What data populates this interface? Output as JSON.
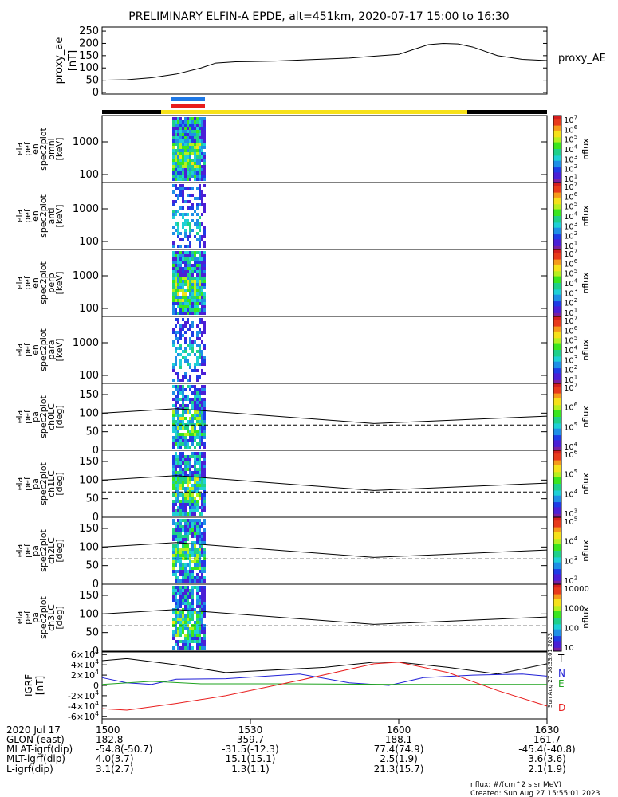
{
  "title": "PRELIMINARY ELFIN-A EPDE, alt=451km, 2020-07-17 15:00 to 16:30",
  "colors": {
    "black": "#000000",
    "yellow": "#f7e11a",
    "blue": "#1e78e6",
    "red": "#e81c1c",
    "green": "#1fa31f",
    "navyblue": "#1f1fd6"
  },
  "chart_data": [
    {
      "type": "line",
      "id": "proxy_ae",
      "ylabel": [
        "proxy_ae",
        "[nT]"
      ],
      "legend": "proxy_AE",
      "yticks": [
        "250",
        "200",
        "150",
        "100",
        "50",
        "0"
      ],
      "ylim": [
        0,
        260
      ],
      "x_minutes": [
        0,
        5,
        10,
        15,
        20,
        23,
        27,
        30,
        35,
        40,
        45,
        50,
        55,
        60,
        63,
        66,
        69,
        72,
        75,
        80,
        85,
        90
      ],
      "y": [
        50,
        52,
        60,
        75,
        100,
        120,
        125,
        126,
        128,
        132,
        136,
        140,
        148,
        155,
        175,
        195,
        200,
        198,
        185,
        150,
        135,
        130
      ]
    },
    {
      "type": "heatmap",
      "id": "pef_en_spec2plot_omni",
      "ylabel": [
        "ela",
        "pef",
        "en",
        "spec2plot",
        "omni",
        "[keV]"
      ],
      "yticks": [
        "1000",
        "100"
      ],
      "yscale": "log",
      "zlabel": "nflux",
      "zticks": [
        "10^7",
        "10^6",
        "10^5",
        "10^4",
        "10^3",
        "10^2",
        "10^1"
      ],
      "x_range_minutes": [
        13.5,
        19.5
      ]
    },
    {
      "type": "heatmap",
      "id": "pef_en_spec2plot_anti",
      "ylabel": [
        "ela",
        "pef",
        "en",
        "spec2plot",
        "anti",
        "[keV]"
      ],
      "yticks": [
        "1000",
        "100"
      ],
      "yscale": "log",
      "zlabel": "nflux",
      "zticks": [
        "10^7",
        "10^6",
        "10^5",
        "10^4",
        "10^3",
        "10^2",
        "10^1"
      ],
      "x_range_minutes": [
        13.5,
        19.5
      ]
    },
    {
      "type": "heatmap",
      "id": "pef_en_spec2plot_perp",
      "ylabel": [
        "ela",
        "pef",
        "en",
        "spec2plot",
        "perp",
        "[keV]"
      ],
      "yticks": [
        "1000",
        "100"
      ],
      "yscale": "log",
      "zlabel": "nflux",
      "zticks": [
        "10^7",
        "10^6",
        "10^5",
        "10^4",
        "10^3",
        "10^2",
        "10^1"
      ],
      "x_range_minutes": [
        13.5,
        19.5
      ]
    },
    {
      "type": "heatmap",
      "id": "pef_en_spec2plot_para",
      "ylabel": [
        "ela",
        "pef",
        "en",
        "spec2plot",
        "para",
        "[keV]"
      ],
      "yticks": [
        "1000",
        "100"
      ],
      "yscale": "log",
      "zlabel": "nflux",
      "zticks": [
        "10^7",
        "10^6",
        "10^5",
        "10^4",
        "10^3",
        "10^2",
        "10^1"
      ],
      "x_range_minutes": [
        13.5,
        19.5
      ]
    },
    {
      "type": "heatmap",
      "id": "pef_pa_spec2plot_ch0LC",
      "ylabel": [
        "ela",
        "pef",
        "pa",
        "spec2plot",
        "ch0LC",
        "[deg]"
      ],
      "yticks": [
        "150",
        "100",
        "50",
        "0"
      ],
      "ylim": [
        0,
        180
      ],
      "zlabel": "nflux",
      "zticks": [
        "10^7",
        "10^6",
        "10^5",
        "10^4"
      ],
      "losscone": [
        [
          0,
          100
        ],
        [
          15,
          112
        ],
        [
          55,
          72
        ],
        [
          90,
          92
        ]
      ],
      "antilosscone": [
        [
          0,
          68
        ],
        [
          15,
          68
        ],
        [
          55,
          68
        ],
        [
          90,
          68
        ]
      ]
    },
    {
      "type": "heatmap",
      "id": "pef_pa_spec2plot_ch1LC",
      "ylabel": [
        "ela",
        "pef",
        "pa",
        "spec2plot",
        "ch1LC",
        "[deg]"
      ],
      "yticks": [
        "150",
        "100",
        "50",
        "0"
      ],
      "ylim": [
        0,
        180
      ],
      "zlabel": "nflux",
      "zticks": [
        "10^6",
        "10^5",
        "10^4",
        "10^3"
      ],
      "losscone": [
        [
          0,
          100
        ],
        [
          15,
          112
        ],
        [
          55,
          72
        ],
        [
          90,
          92
        ]
      ],
      "antilosscone": [
        [
          0,
          68
        ],
        [
          15,
          68
        ],
        [
          55,
          68
        ],
        [
          90,
          68
        ]
      ]
    },
    {
      "type": "heatmap",
      "id": "pef_pa_spec2plot_ch2LC",
      "ylabel": [
        "ela",
        "pef",
        "pa",
        "spec2plot",
        "ch2LC",
        "[deg]"
      ],
      "yticks": [
        "150",
        "100",
        "50",
        "0"
      ],
      "ylim": [
        0,
        180
      ],
      "zlabel": "nflux",
      "zticks": [
        "10^5",
        "10^4",
        "10^3",
        "10^2"
      ],
      "losscone": [
        [
          0,
          100
        ],
        [
          15,
          112
        ],
        [
          55,
          72
        ],
        [
          90,
          92
        ]
      ],
      "antilosscone": [
        [
          0,
          68
        ],
        [
          15,
          68
        ],
        [
          55,
          68
        ],
        [
          90,
          68
        ]
      ]
    },
    {
      "type": "heatmap",
      "id": "pef_pa_spec2plot_ch3LC",
      "ylabel": [
        "ela",
        "pef",
        "pa",
        "spec2plot",
        "ch3LC",
        "[deg]"
      ],
      "yticks": [
        "150",
        "100",
        "50",
        "0"
      ],
      "ylim": [
        0,
        180
      ],
      "zlabel": "nflux",
      "zticks": [
        "10000",
        "1000",
        "100",
        "10"
      ],
      "losscone": [
        [
          0,
          100
        ],
        [
          15,
          112
        ],
        [
          55,
          72
        ],
        [
          90,
          92
        ]
      ],
      "antilosscone": [
        [
          0,
          68
        ],
        [
          15,
          68
        ],
        [
          55,
          68
        ],
        [
          90,
          68
        ]
      ]
    },
    {
      "type": "line",
      "id": "igrf",
      "ylabel": [
        "IGRF",
        "[nT]"
      ],
      "yticks": [
        "6×10^4",
        "4×10^4",
        "2×10^4",
        "0",
        "-2×10^4",
        "-4×10^4",
        "-6×10^4"
      ],
      "ylim": [
        -65000,
        65000
      ],
      "legend": [
        "T",
        "N",
        "E",
        "D"
      ],
      "series": [
        {
          "name": "T",
          "x": [
            0,
            5,
            15,
            25,
            45,
            55,
            60,
            70,
            80,
            90
          ],
          "y": [
            48000,
            52000,
            40000,
            25000,
            35000,
            45000,
            45000,
            35000,
            22000,
            42000
          ]
        },
        {
          "name": "N",
          "x": [
            0,
            5,
            10,
            15,
            25,
            40,
            50,
            58,
            65,
            75,
            85,
            90
          ],
          "y": [
            15000,
            5000,
            2000,
            12000,
            13000,
            22000,
            5000,
            0,
            15000,
            20000,
            22000,
            18000
          ]
        },
        {
          "name": "E",
          "x": [
            0,
            10,
            20,
            40,
            60,
            80,
            90
          ],
          "y": [
            2000,
            8000,
            3000,
            3000,
            2000,
            2000,
            2000
          ]
        },
        {
          "name": "D",
          "x": [
            0,
            5,
            15,
            25,
            40,
            55,
            60,
            70,
            80,
            90
          ],
          "y": [
            -45000,
            -48000,
            -35000,
            -20000,
            10000,
            42000,
            45000,
            25000,
            -10000,
            -40000
          ]
        }
      ]
    }
  ],
  "sidebar_stamp": "Sun Aug 27 08:33:01 2023",
  "bottom_table": {
    "rows": [
      {
        "label": "2020 Jul 17",
        "values": [
          "1500",
          "1530",
          "1600",
          "1630"
        ]
      },
      {
        "label": "GLON (east)",
        "values": [
          "182.8",
          "359.7",
          "188.1",
          "161.7"
        ]
      },
      {
        "label": "MLAT-igrf(dip)",
        "values": [
          "-54.8(-50.7)",
          "-31.5(-12.3)",
          "77.4(74.9)",
          "-45.4(-40.8)"
        ]
      },
      {
        "label": "MLT-igrf(dip)",
        "values": [
          "4.0(3.7)",
          "15.1(15.1)",
          "2.5(1.9)",
          "3.6(3.6)"
        ]
      },
      {
        "label": "L-igrf(dip)",
        "values": [
          "3.1(2.7)",
          "1.3(1.1)",
          "21.3(15.7)",
          "2.1(1.9)"
        ]
      }
    ]
  },
  "footer": {
    "units": "nflux: #/(cm^2 s sr MeV)",
    "created": "Created: Sun Aug 27 15:55:01 2023"
  }
}
